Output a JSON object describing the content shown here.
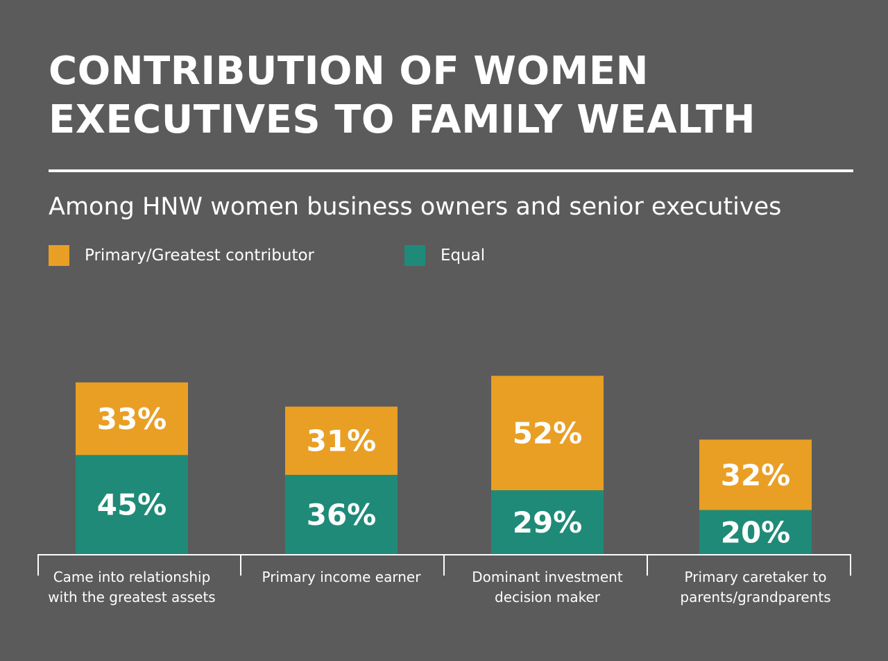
{
  "header": {
    "title_line1": "CONTRIBUTION OF WOMEN",
    "title_line2": "EXECUTIVES TO FAMILY WEALTH",
    "subtitle": "Among HNW women business owners and senior executives"
  },
  "colors": {
    "background": "#5b5b5b",
    "primary": "#e99e24",
    "equal": "#1f8a78",
    "text": "#ffffff"
  },
  "chart_data": {
    "type": "bar",
    "stacked": true,
    "title": "CONTRIBUTION OF WOMEN EXECUTIVES TO FAMILY WEALTH",
    "subtitle": "Among HNW women business owners and senior executives",
    "legend_position": "top-left",
    "grid": false,
    "categories": [
      [
        "Came into relationship",
        "with the greatest assets"
      ],
      [
        "Primary income earner"
      ],
      [
        "Dominant investment",
        "decision maker"
      ],
      [
        "Primary caretaker to",
        "parents/grandparents"
      ]
    ],
    "series": [
      {
        "name": "Equal",
        "color": "#1f8a78",
        "values": [
          45,
          36,
          29,
          20
        ],
        "labels": [
          "45%",
          "36%",
          "29%",
          "20%"
        ]
      },
      {
        "name": "Primary/Greatest contributor",
        "color": "#e99e24",
        "values": [
          33,
          31,
          52,
          32
        ],
        "labels": [
          "33%",
          "31%",
          "52%",
          "32%"
        ]
      }
    ],
    "legend": [
      {
        "name": "Primary/Greatest contributor",
        "color": "#e99e24"
      },
      {
        "name": "Equal",
        "color": "#1f8a78"
      }
    ],
    "ylim": [
      0,
      100
    ]
  }
}
